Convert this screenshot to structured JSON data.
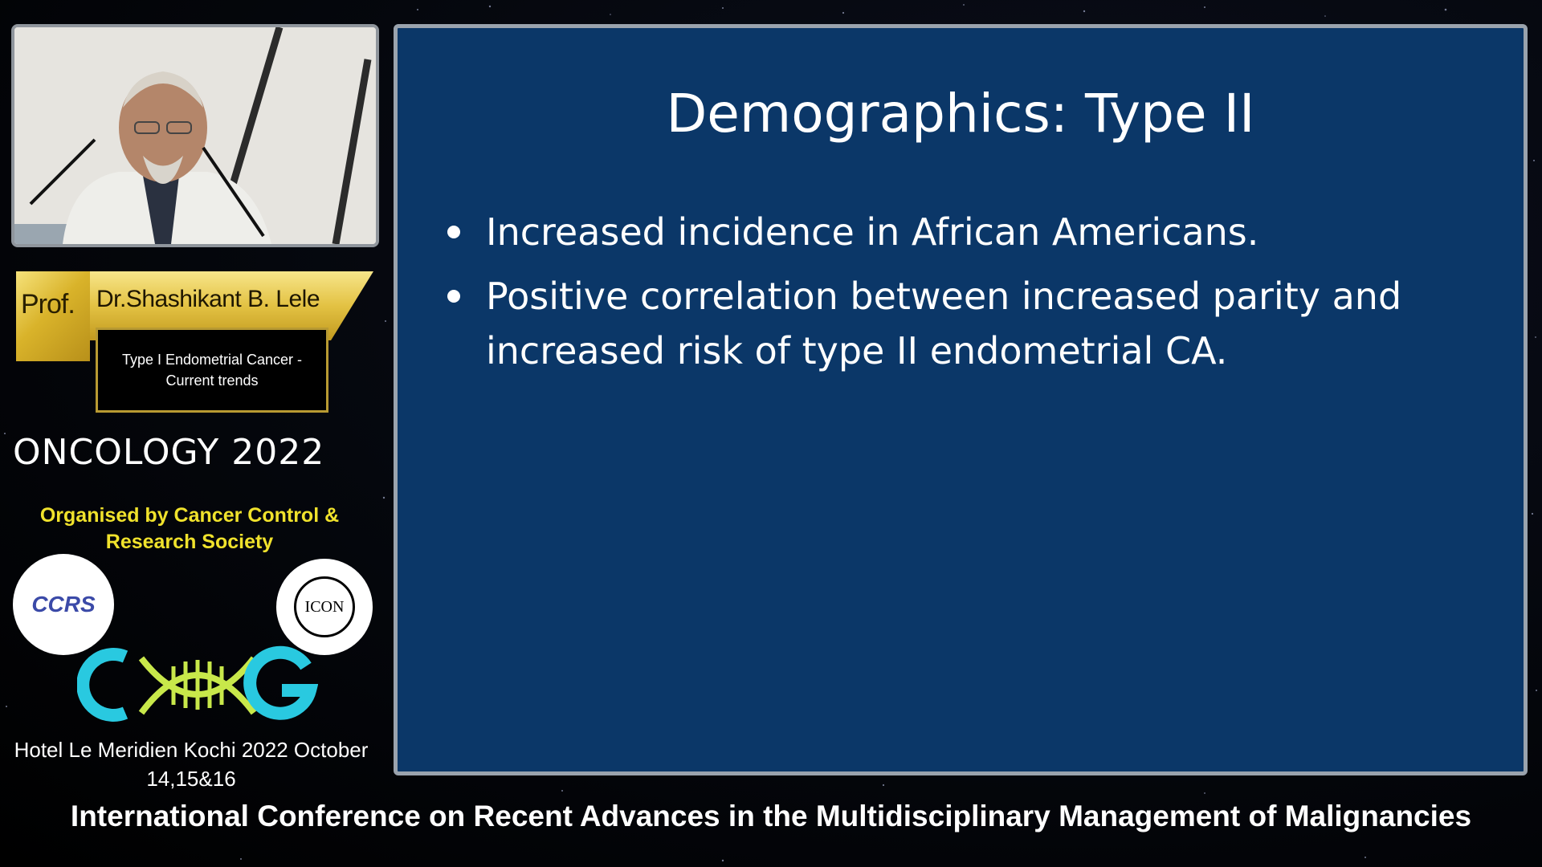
{
  "speaker": {
    "prefix": "Prof.",
    "name": "Dr.Shashikant B. Lele",
    "talk_title": "Type I Endometrial Cancer - Current trends"
  },
  "event": {
    "name": "ONCOLOGY 2022",
    "organiser": "Organised by   Cancer Control & Research Society",
    "logos": {
      "ccrs": "CCRS",
      "icon": "ICON",
      "cog": "COG"
    },
    "venue": "Hotel Le Meridien  Kochi  2022 October 14,15&16"
  },
  "slide": {
    "title": "Demographics: Type II",
    "bullets": [
      "Increased incidence in African Americans.",
      "Positive correlation between increased parity and increased risk of type II endometrial CA."
    ]
  },
  "footer": "International Conference on Recent Advances in the Multidisciplinary Management of Malignancies",
  "colors": {
    "slide_bg": "#0b3768",
    "gold": "#e3c243",
    "organiser_yellow": "#f0e22c",
    "cog_cyan": "#29c9e0",
    "cog_green": "#c8e84a"
  }
}
